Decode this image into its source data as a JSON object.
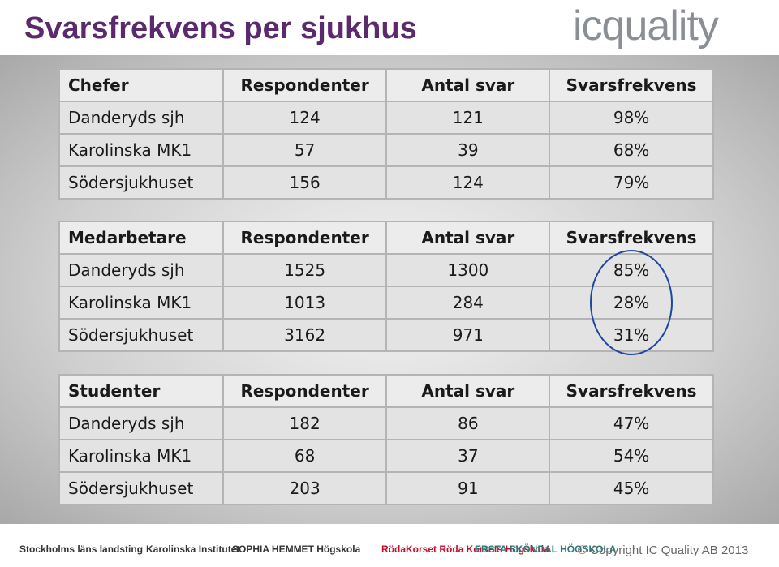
{
  "header": {
    "title": "Svarsfrekvens per sjukhus",
    "logo": "icquality"
  },
  "tables": [
    {
      "rows": [
        [
          "Chefer",
          "Respondenter",
          "Antal svar",
          "Svarsfrekvens"
        ],
        [
          "Danderyds sjh",
          "124",
          "121",
          "98%"
        ],
        [
          "Karolinska MK1",
          "57",
          "39",
          "68%"
        ],
        [
          "Södersjukhuset",
          "156",
          "124",
          "79%"
        ]
      ]
    },
    {
      "rows": [
        [
          "Medarbetare",
          "Respondenter",
          "Antal svar",
          "Svarsfrekvens"
        ],
        [
          "Danderyds sjh",
          "1525",
          "1300",
          "85%"
        ],
        [
          "Karolinska MK1",
          "1013",
          "284",
          "28%"
        ],
        [
          "Södersjukhuset",
          "3162",
          "971",
          "31%"
        ]
      ]
    },
    {
      "rows": [
        [
          "Studenter",
          "Respondenter",
          "Antal svar",
          "Svarsfrekvens"
        ],
        [
          "Danderyds sjh",
          "182",
          "86",
          "47%"
        ],
        [
          "Karolinska MK1",
          "68",
          "37",
          "54%"
        ],
        [
          "Södersjukhuset",
          "203",
          "91",
          "45%"
        ]
      ]
    }
  ],
  "footer": {
    "logos": [
      "Stockholms läns landsting",
      "Karolinska Institutet",
      "SOPHIA HEMMET Högskola",
      "RödaKorset Röda Korsets Högskola",
      "ERSTA SKÖNDAL HÖGSKOLA"
    ],
    "copyright": "© Copyright IC Quality AB 2013"
  }
}
